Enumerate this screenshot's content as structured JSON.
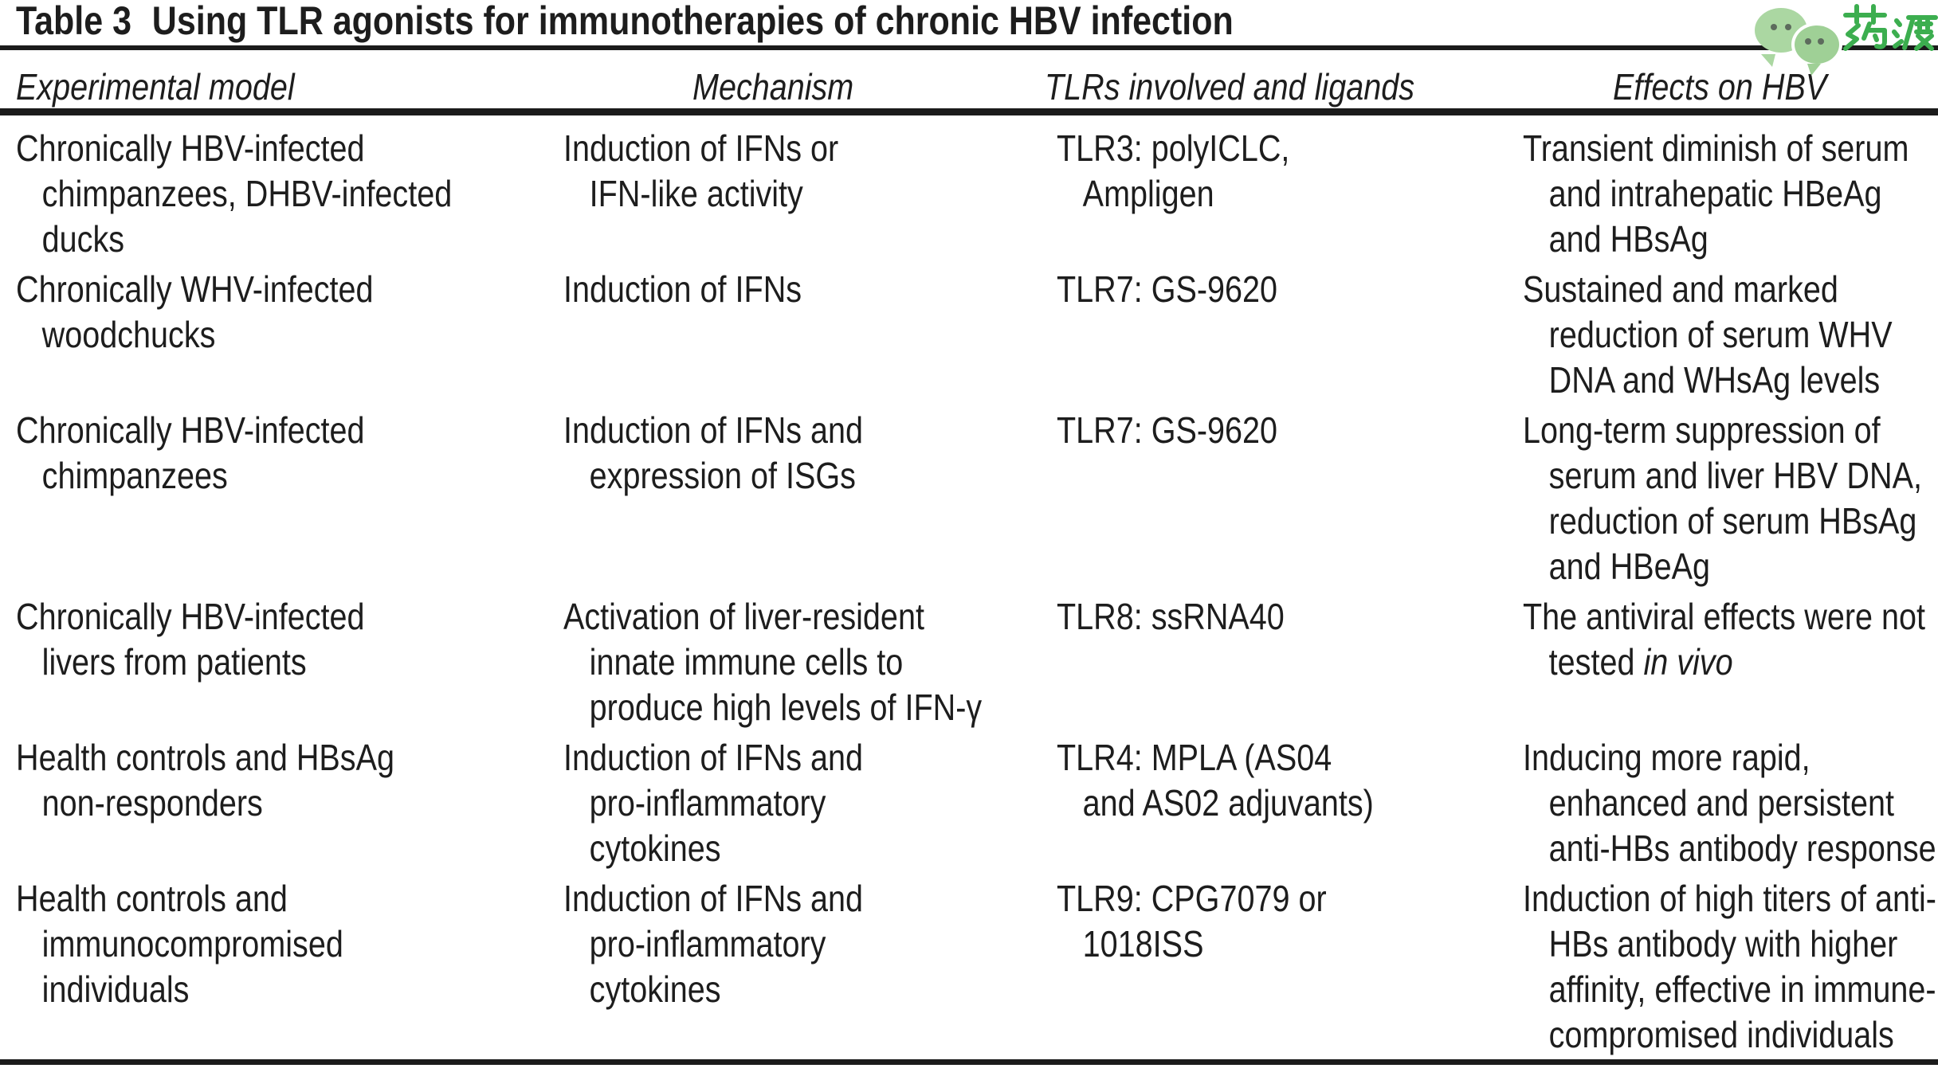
{
  "title": {
    "label": "Table 3",
    "text": "Using TLR agonists for immunotherapies of chronic HBV infection"
  },
  "logo": {
    "text": "药渡",
    "icon": "wechat-icon",
    "brand_green": "#3cae4f",
    "bubble_green_big": "#abd7a2",
    "bubble_green_small": "#9fd096"
  },
  "colors": {
    "text": "#1d1d1d",
    "rule": "#1b1b1b",
    "background": "#ffffff"
  },
  "table": {
    "headers": [
      "Experimental model",
      "Mechanism",
      "TLRs involved and ligands",
      "Effects on HBV"
    ],
    "rows": [
      {
        "model": [
          "Chronically HBV-infected",
          "chimpanzees, DHBV-infected",
          "ducks"
        ],
        "mechanism": [
          "Induction of IFNs or",
          "IFN-like activity"
        ],
        "tlrs": [
          "TLR3: polyICLC,",
          "Ampligen"
        ],
        "effects": [
          "Transient diminish of serum",
          "and intrahepatic HBeAg",
          "and HBsAg"
        ]
      },
      {
        "model": [
          "Chronically WHV-infected",
          "woodchucks"
        ],
        "mechanism": [
          "Induction of IFNs"
        ],
        "tlrs": [
          "TLR7: GS-9620"
        ],
        "effects": [
          "Sustained and marked",
          "reduction of serum WHV",
          "DNA and WHsAg levels"
        ]
      },
      {
        "model": [
          "Chronically HBV-infected",
          "chimpanzees"
        ],
        "mechanism": [
          "Induction of IFNs and",
          "expression of ISGs"
        ],
        "tlrs": [
          "TLR7: GS-9620"
        ],
        "effects": [
          "Long-term suppression of",
          "serum and liver HBV DNA,",
          "reduction of serum HBsAg",
          "and HBeAg"
        ]
      },
      {
        "model": [
          "Chronically HBV-infected",
          "livers from patients"
        ],
        "mechanism": [
          "Activation of liver-resident",
          "innate immune cells to",
          "produce high levels of IFN-γ"
        ],
        "tlrs": [
          "TLR8: ssRNA40"
        ],
        "effects": [
          "The antiviral effects were not",
          {
            "parts": [
              {
                "text": "tested "
              },
              {
                "text": "in vivo",
                "italic": true
              }
            ]
          }
        ]
      },
      {
        "model": [
          "Health controls and HBsAg",
          "non-responders"
        ],
        "mechanism": [
          "Induction of IFNs and",
          "pro-inflammatory",
          "cytokines"
        ],
        "tlrs": [
          "TLR4: MPLA (AS04",
          "and AS02 adjuvants)"
        ],
        "effects": [
          "Inducing more rapid,",
          "enhanced and persistent",
          "anti-HBs antibody response"
        ]
      },
      {
        "model": [
          "Health controls and",
          "immunocompromised",
          "individuals"
        ],
        "mechanism": [
          "Induction of IFNs and",
          "pro-inflammatory",
          "cytokines"
        ],
        "tlrs": [
          "TLR9: CPG7079 or",
          "1018ISS"
        ],
        "effects": [
          "Induction of high titers of anti-",
          "HBs antibody with higher",
          "affinity, effective in immune-",
          "compromised individuals"
        ]
      }
    ]
  }
}
